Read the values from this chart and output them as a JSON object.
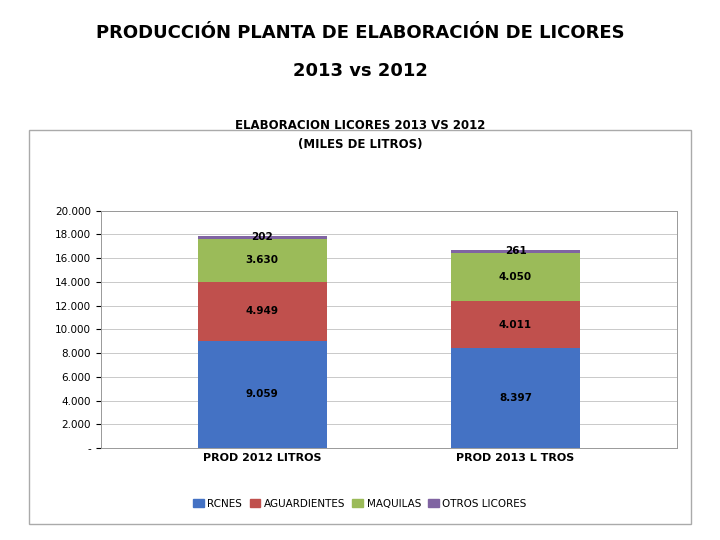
{
  "title_main_line1": "PRODUCCIÓN PLANTA DE ELABORACIÓN DE LICORES",
  "title_main_line2": "2013 vs 2012",
  "chart_title_line1": "ELABORACION LICORES 2013 VS 2012",
  "chart_title_line2": "(MILES DE LITROS)",
  "categories": [
    "PROD 2012 LITROS",
    "PROD 2013 L TROS"
  ],
  "series": {
    "RCNES": [
      9059,
      8397
    ],
    "AGUARDIENTES": [
      4949,
      4011
    ],
    "MAQUILAS": [
      3630,
      4050
    ],
    "OTROS LICORES": [
      202,
      261
    ]
  },
  "colors": {
    "RCNES": "#4472C4",
    "AGUARDIENTES": "#C0504D",
    "MAQUILAS": "#9BBB59",
    "OTROS LICORES": "#8064A2"
  },
  "ylim": [
    0,
    20000
  ],
  "yticks": [
    0,
    2000,
    4000,
    6000,
    8000,
    10000,
    12000,
    14000,
    16000,
    18000,
    20000
  ],
  "ytick_labels": [
    "-",
    "2.000",
    "4.000",
    "6.000",
    "8.000",
    "10.000",
    "12.000",
    "14.000",
    "16.000",
    "18.000",
    "20.000"
  ],
  "bar_width": 0.28,
  "background_color": "#FFFFFF",
  "chart_bg_color": "#FFFFFF",
  "grid_color": "#C0C0C0",
  "label_values": {
    "RCNES": [
      "9.059",
      "8.397"
    ],
    "AGUARDIENTES": [
      "4.949",
      "4.011"
    ],
    "MAQUILAS": [
      "3.630",
      "4.050"
    ],
    "OTROS LICORES": [
      "202",
      "261"
    ]
  }
}
